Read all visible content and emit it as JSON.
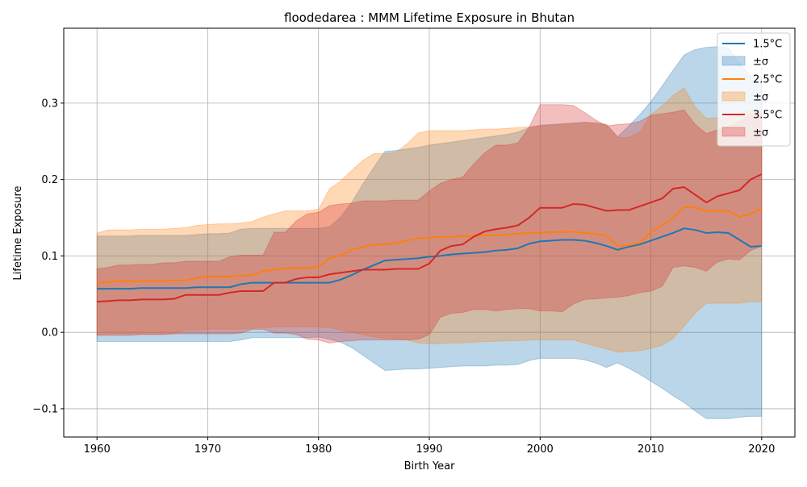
{
  "chart_data": {
    "type": "line",
    "title": "floodedarea : MMM Lifetime Exposure in Bhutan",
    "xlabel": "Birth Year",
    "ylabel": "Lifetime Exposure",
    "xlim": [
      1957,
      2023
    ],
    "ylim": [
      -0.137,
      0.398
    ],
    "xticks": [
      1960,
      1970,
      1980,
      1990,
      2000,
      2010,
      2020
    ],
    "yticks": [
      -0.1,
      0.0,
      0.1,
      0.2,
      0.3
    ],
    "ytick_labels": [
      "−0.1",
      "0.0",
      "0.1",
      "0.2",
      "0.3"
    ],
    "grid": true,
    "legend_position": "top-right",
    "band_label": "±σ",
    "x": [
      1960,
      1961,
      1962,
      1963,
      1964,
      1965,
      1966,
      1967,
      1968,
      1969,
      1970,
      1971,
      1972,
      1973,
      1974,
      1975,
      1976,
      1977,
      1978,
      1979,
      1980,
      1981,
      1982,
      1983,
      1984,
      1985,
      1986,
      1987,
      1988,
      1989,
      1990,
      1991,
      1992,
      1993,
      1994,
      1995,
      1996,
      1997,
      1998,
      1999,
      2000,
      2001,
      2002,
      2003,
      2004,
      2005,
      2006,
      2007,
      2008,
      2009,
      2010,
      2011,
      2012,
      2013,
      2014,
      2015,
      2016,
      2017,
      2018,
      2019,
      2020
    ],
    "series": [
      {
        "name": "1.5°C",
        "color": "#1f77b4",
        "values": [
          0.057,
          0.057,
          0.057,
          0.057,
          0.058,
          0.058,
          0.058,
          0.058,
          0.058,
          0.059,
          0.059,
          0.059,
          0.059,
          0.063,
          0.065,
          0.065,
          0.065,
          0.065,
          0.065,
          0.065,
          0.065,
          0.065,
          0.069,
          0.075,
          0.082,
          0.088,
          0.094,
          0.095,
          0.096,
          0.097,
          0.099,
          0.1,
          0.102,
          0.103,
          0.104,
          0.105,
          0.107,
          0.108,
          0.11,
          0.116,
          0.119,
          0.12,
          0.121,
          0.121,
          0.12,
          0.117,
          0.113,
          0.108,
          0.112,
          0.115,
          0.12,
          0.125,
          0.13,
          0.136,
          0.134,
          0.13,
          0.131,
          0.13,
          0.121,
          0.112,
          0.113
        ],
        "lower": [
          -0.012,
          -0.012,
          -0.012,
          -0.012,
          -0.012,
          -0.012,
          -0.012,
          -0.012,
          -0.012,
          -0.012,
          -0.012,
          -0.012,
          -0.012,
          -0.01,
          -0.007,
          -0.007,
          -0.007,
          -0.007,
          -0.007,
          -0.007,
          -0.006,
          -0.009,
          -0.013,
          -0.02,
          -0.03,
          -0.04,
          -0.05,
          -0.049,
          -0.048,
          -0.048,
          -0.047,
          -0.046,
          -0.045,
          -0.044,
          -0.044,
          -0.044,
          -0.043,
          -0.043,
          -0.042,
          -0.037,
          -0.034,
          -0.034,
          -0.034,
          -0.034,
          -0.036,
          -0.04,
          -0.046,
          -0.04,
          -0.047,
          -0.055,
          -0.064,
          -0.073,
          -0.083,
          -0.092,
          -0.103,
          -0.113,
          -0.113,
          -0.113,
          -0.111,
          -0.11,
          -0.11
        ],
        "upper": [
          0.126,
          0.126,
          0.126,
          0.126,
          0.127,
          0.127,
          0.127,
          0.127,
          0.127,
          0.128,
          0.129,
          0.129,
          0.13,
          0.135,
          0.136,
          0.136,
          0.136,
          0.136,
          0.136,
          0.136,
          0.136,
          0.138,
          0.151,
          0.17,
          0.194,
          0.216,
          0.237,
          0.238,
          0.24,
          0.242,
          0.245,
          0.247,
          0.249,
          0.251,
          0.253,
          0.255,
          0.257,
          0.259,
          0.262,
          0.268,
          0.271,
          0.272,
          0.273,
          0.274,
          0.275,
          0.274,
          0.272,
          0.256,
          0.27,
          0.285,
          0.302,
          0.322,
          0.343,
          0.363,
          0.37,
          0.373,
          0.374,
          0.373,
          0.353,
          0.335,
          0.335
        ]
      },
      {
        "name": "2.5°C",
        "color": "#ff7f0e",
        "values": [
          0.064,
          0.066,
          0.067,
          0.067,
          0.067,
          0.067,
          0.067,
          0.068,
          0.068,
          0.071,
          0.073,
          0.073,
          0.073,
          0.074,
          0.075,
          0.08,
          0.082,
          0.084,
          0.084,
          0.084,
          0.086,
          0.097,
          0.101,
          0.108,
          0.112,
          0.115,
          0.115,
          0.117,
          0.12,
          0.123,
          0.124,
          0.125,
          0.125,
          0.126,
          0.126,
          0.127,
          0.127,
          0.128,
          0.129,
          0.13,
          0.131,
          0.131,
          0.131,
          0.132,
          0.13,
          0.129,
          0.126,
          0.113,
          0.114,
          0.117,
          0.131,
          0.14,
          0.15,
          0.164,
          0.163,
          0.159,
          0.159,
          0.159,
          0.151,
          0.155,
          0.162
        ],
        "lower": [
          -0.003,
          -0.002,
          -0.002,
          -0.002,
          -0.002,
          -0.002,
          -0.002,
          -0.001,
          0.003,
          0.003,
          0.004,
          0.004,
          0.004,
          0.004,
          0.005,
          0.006,
          0.007,
          0.007,
          0.007,
          0.007,
          0.007,
          0.006,
          0.003,
          0.0,
          -0.003,
          -0.006,
          -0.008,
          -0.009,
          -0.01,
          -0.014,
          -0.015,
          -0.015,
          -0.014,
          -0.014,
          -0.013,
          -0.012,
          -0.012,
          -0.011,
          -0.011,
          -0.01,
          -0.01,
          -0.01,
          -0.01,
          -0.01,
          -0.014,
          -0.018,
          -0.022,
          -0.026,
          -0.025,
          -0.024,
          -0.021,
          -0.017,
          -0.008,
          0.008,
          0.025,
          0.038,
          0.038,
          0.038,
          0.038,
          0.04,
          0.04
        ],
        "upper": [
          0.13,
          0.134,
          0.134,
          0.134,
          0.135,
          0.135,
          0.135,
          0.136,
          0.137,
          0.14,
          0.141,
          0.142,
          0.142,
          0.143,
          0.145,
          0.151,
          0.155,
          0.159,
          0.159,
          0.159,
          0.161,
          0.188,
          0.198,
          0.212,
          0.225,
          0.234,
          0.234,
          0.236,
          0.247,
          0.261,
          0.264,
          0.264,
          0.264,
          0.264,
          0.265,
          0.266,
          0.266,
          0.267,
          0.268,
          0.269,
          0.27,
          0.271,
          0.272,
          0.273,
          0.274,
          0.274,
          0.272,
          0.255,
          0.255,
          0.262,
          0.285,
          0.296,
          0.31,
          0.32,
          0.295,
          0.28,
          0.281,
          0.281,
          0.286,
          0.291,
          0.291
        ]
      },
      {
        "name": "3.5°C",
        "color": "#d62728",
        "values": [
          0.04,
          0.041,
          0.042,
          0.042,
          0.043,
          0.043,
          0.043,
          0.044,
          0.049,
          0.049,
          0.049,
          0.049,
          0.052,
          0.054,
          0.054,
          0.054,
          0.065,
          0.065,
          0.07,
          0.072,
          0.072,
          0.076,
          0.078,
          0.08,
          0.082,
          0.082,
          0.082,
          0.083,
          0.083,
          0.083,
          0.09,
          0.107,
          0.113,
          0.115,
          0.125,
          0.132,
          0.135,
          0.137,
          0.14,
          0.15,
          0.163,
          0.163,
          0.163,
          0.168,
          0.167,
          0.163,
          0.159,
          0.16,
          0.16,
          0.165,
          0.17,
          0.175,
          0.188,
          0.19,
          0.18,
          0.17,
          0.178,
          0.182,
          0.186,
          0.2,
          0.207
        ],
        "lower": [
          -0.004,
          -0.004,
          -0.004,
          -0.004,
          -0.003,
          -0.003,
          -0.003,
          -0.002,
          -0.002,
          -0.002,
          -0.002,
          -0.002,
          -0.002,
          -0.001,
          0.004,
          0.004,
          -0.001,
          -0.001,
          -0.003,
          -0.009,
          -0.01,
          -0.014,
          -0.012,
          -0.011,
          -0.01,
          -0.01,
          -0.01,
          -0.01,
          -0.01,
          -0.009,
          -0.003,
          0.02,
          0.025,
          0.026,
          0.03,
          0.03,
          0.028,
          0.03,
          0.031,
          0.031,
          0.028,
          0.028,
          0.027,
          0.037,
          0.043,
          0.044,
          0.045,
          0.046,
          0.048,
          0.052,
          0.054,
          0.06,
          0.085,
          0.087,
          0.085,
          0.08,
          0.092,
          0.096,
          0.095,
          0.107,
          0.113
        ],
        "upper": [
          0.083,
          0.085,
          0.088,
          0.088,
          0.089,
          0.089,
          0.091,
          0.091,
          0.093,
          0.093,
          0.093,
          0.093,
          0.099,
          0.101,
          0.101,
          0.101,
          0.131,
          0.131,
          0.146,
          0.155,
          0.157,
          0.166,
          0.168,
          0.169,
          0.172,
          0.172,
          0.172,
          0.173,
          0.173,
          0.173,
          0.185,
          0.195,
          0.2,
          0.203,
          0.22,
          0.235,
          0.245,
          0.245,
          0.248,
          0.268,
          0.298,
          0.298,
          0.298,
          0.297,
          0.288,
          0.278,
          0.27,
          0.272,
          0.273,
          0.276,
          0.284,
          0.286,
          0.288,
          0.291,
          0.272,
          0.26,
          0.265,
          0.27,
          0.275,
          0.285,
          0.286
        ]
      }
    ]
  }
}
